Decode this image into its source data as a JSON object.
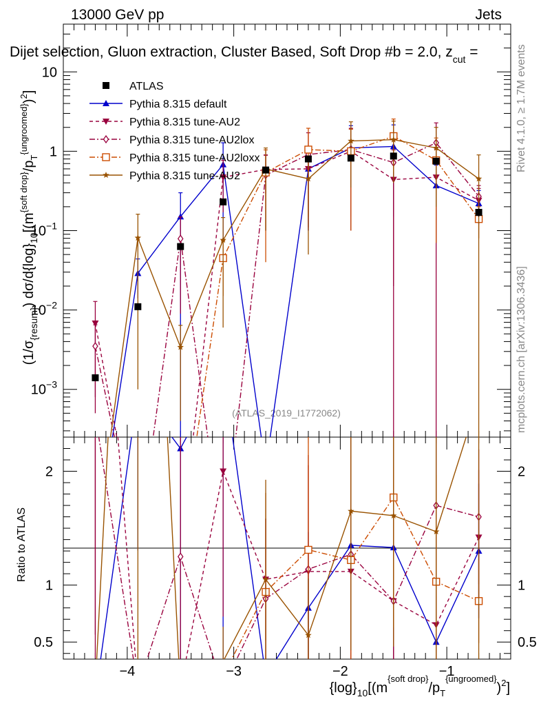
{
  "header": {
    "energy_label": "13000 GeV pp",
    "category_label": "Jets",
    "plot_title": "Dijet selection, Gluon extraction, Cluster Based, Soft Drop #b = 2.0, z",
    "title_sub_cut": "cut",
    "title_trailing": " =",
    "watermark": "(ATLAS_2019_I1772062)",
    "side_text_rivet": "Rivet 4.1.0, ≥ 1.7M events",
    "side_text_mcplots": "mcplots.cern.ch [arXiv:1306.3436]"
  },
  "labels": {
    "upper_ylabel": "(1/σ_{resum}) dσ/d{log}_{10}[(m^{soft drop}/p_{T}^{ungroomed})^{2}]",
    "ratio_ylabel": "Ratio to ATLAS",
    "xlabel": "{log}_{10}[(m^{soft drop}/p_{T}^{ungroomed})^{2}]"
  },
  "legend": [
    {
      "label": "ATLAS",
      "marker": "square",
      "color": "#000000",
      "line": "none"
    },
    {
      "label": "Pythia 8.315 default",
      "marker": "triangle-up",
      "color": "#0000cc",
      "line": "solid"
    },
    {
      "label": "Pythia 8.315 tune-AU2",
      "marker": "triangle-down",
      "color": "#99003d",
      "line": "dashed"
    },
    {
      "label": "Pythia 8.315 tune-AU2lox",
      "marker": "diamond-open",
      "color": "#99003d",
      "line": "dashdot"
    },
    {
      "label": "Pythia 8.315 tune-AU2loxx",
      "marker": "square-open",
      "color": "#cc4c00",
      "line": "dashdot"
    },
    {
      "label": "Pythia 8.315 tune-AU2",
      "marker": "star",
      "color": "#995200",
      "line": "solid"
    }
  ],
  "chart_data": {
    "type": "line",
    "x": [
      -4.3,
      -3.9,
      -3.5,
      -3.1,
      -2.7,
      -2.3,
      -1.9,
      -1.5,
      -1.1,
      -0.7
    ],
    "xlim": [
      -4.6,
      -0.4
    ],
    "ylim_upper": [
      0.00025,
      40
    ],
    "yscale_upper": "log",
    "ylim_ratio": [
      0.35,
      2.3
    ],
    "x_ticks": [
      -4,
      -3,
      -2,
      -1
    ],
    "x_tick_labels": [
      "−4",
      "−3",
      "−2",
      "−1"
    ],
    "y_ticks_upper": [
      0.001,
      0.01,
      0.1,
      1,
      10
    ],
    "y_ticks_ratio": [
      0.5,
      1,
      2
    ],
    "y_tick_labels_ratio": [
      "0.5",
      "1",
      "2"
    ],
    "series": [
      {
        "name": "ATLAS",
        "values": [
          0.0014,
          0.011,
          0.063,
          0.23,
          0.58,
          0.8,
          0.82,
          0.87,
          0.75,
          0.17
        ],
        "errors": [
          0.0001,
          0.001,
          0.005,
          0.02,
          0.05,
          0.07,
          0.07,
          0.08,
          0.07,
          0.02
        ]
      },
      {
        "name": "Pythia 8.315 default",
        "values": [
          1e-05,
          0.029,
          0.15,
          0.68,
          0.0001,
          0.6,
          1.1,
          1.15,
          0.37,
          0.22
        ],
        "errors": [
          0,
          0.015,
          0.15,
          0.6,
          0,
          0.5,
          1.0,
          1.0,
          0.3,
          0.1
        ],
        "ratio": [
          0.01,
          2.7,
          2.2,
          2.9,
          0.2,
          0.8,
          1.35,
          1.33,
          0.5,
          1.3
        ]
      },
      {
        "name": "Pythia 8.315 tune-AU2",
        "values": [
          0.0068,
          1e-05,
          1e-05,
          0.47,
          0.59,
          0.6,
          1.0,
          0.44,
          0.47,
          0.24
        ],
        "errors": [
          0.006,
          0,
          0,
          0.3,
          0.3,
          0.5,
          0.9,
          0.6,
          0.6,
          0.1
        ],
        "ratio": [
          4.8,
          0.1,
          0.1,
          2.0,
          1.05,
          1.12,
          1.12,
          0.86,
          0.65,
          1.42
        ],
        "ratio_draw_from": 2
      },
      {
        "name": "Pythia 8.315 tune-AU2lox",
        "values": [
          0.0035,
          1e-05,
          0.079,
          1e-05,
          0.5,
          0.91,
          1.05,
          0.72,
          1.28,
          0.27
        ],
        "errors": [
          0.003,
          0,
          0.07,
          0,
          0.4,
          0.8,
          0.9,
          0.7,
          1.0,
          0.1
        ],
        "ratio": [
          2.5,
          0.1,
          1.25,
          0.1,
          0.88,
          1.14,
          1.27,
          0.86,
          1.7,
          1.6
        ]
      },
      {
        "name": "Pythia 8.315 tune-AU2loxx",
        "values": [
          1e-05,
          1e-05,
          1e-05,
          0.045,
          0.54,
          1.05,
          1.0,
          1.55,
          0.77,
          0.14
        ],
        "errors": [
          0,
          0,
          0,
          0.03,
          0.5,
          0.9,
          0.9,
          1.0,
          0.7,
          0.06
        ],
        "ratio": [
          0.1,
          0.1,
          0.1,
          0.2,
          0.94,
          1.31,
          1.22,
          1.77,
          1.03,
          0.86
        ]
      },
      {
        "name": "Pythia 8.315 tune-AU2",
        "values": [
          1e-05,
          0.081,
          0.0034,
          0.076,
          0.6,
          0.45,
          1.35,
          1.4,
          1.1,
          0.45
        ],
        "errors": [
          0,
          0.08,
          0.003,
          0.07,
          0.5,
          0.4,
          1.0,
          1.0,
          0.9,
          0.45
        ],
        "ratio": [
          0.1,
          7.4,
          0.054,
          0.33,
          1.05,
          0.56,
          1.65,
          1.61,
          1.47,
          2.65
        ]
      }
    ]
  }
}
